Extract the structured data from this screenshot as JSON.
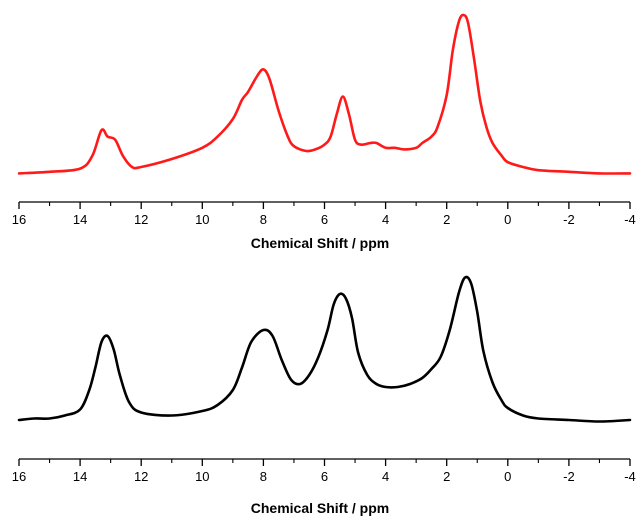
{
  "chart_data": [
    {
      "type": "line",
      "title": "",
      "xlabel": "Chemical Shift / ppm",
      "ylabel": "",
      "xlim": [
        16,
        -4
      ],
      "x_reversed": true,
      "xticks": [
        "16",
        "14",
        "12",
        "10",
        "8",
        "6",
        "4",
        "2",
        "0",
        "-2",
        "-4"
      ],
      "ylim": [
        0,
        1
      ],
      "grid": false,
      "legend": "none",
      "series": [
        {
          "color": "#ff1a1a",
          "x": [
            16.0,
            15.0,
            14.0,
            13.6,
            13.3,
            13.1,
            12.85,
            12.6,
            12.3,
            12.0,
            11.0,
            10.0,
            9.5,
            9.0,
            8.7,
            8.5,
            8.2,
            8.0,
            7.8,
            7.5,
            7.2,
            7.0,
            6.6,
            6.3,
            6.0,
            5.8,
            5.6,
            5.4,
            5.2,
            5.0,
            4.8,
            4.5,
            4.3,
            4.0,
            3.7,
            3.4,
            3.0,
            2.8,
            2.5,
            2.3,
            2.0,
            1.8,
            1.6,
            1.45,
            1.3,
            1.1,
            0.9,
            0.7,
            0.5,
            0.2,
            0.0,
            -0.5,
            -1.0,
            -2.0,
            -3.0,
            -4.0
          ],
          "y": [
            0.01,
            0.02,
            0.04,
            0.12,
            0.28,
            0.24,
            0.22,
            0.12,
            0.05,
            0.05,
            0.1,
            0.17,
            0.24,
            0.35,
            0.47,
            0.52,
            0.62,
            0.66,
            0.6,
            0.4,
            0.24,
            0.18,
            0.15,
            0.16,
            0.19,
            0.24,
            0.38,
            0.49,
            0.38,
            0.22,
            0.19,
            0.2,
            0.2,
            0.17,
            0.17,
            0.16,
            0.17,
            0.2,
            0.24,
            0.3,
            0.5,
            0.78,
            0.96,
            1.0,
            0.95,
            0.72,
            0.46,
            0.3,
            0.2,
            0.12,
            0.08,
            0.05,
            0.03,
            0.02,
            0.01,
            0.01
          ]
        }
      ]
    },
    {
      "type": "line",
      "title": "",
      "xlabel": "Chemical Shift / ppm",
      "ylabel": "",
      "xlim": [
        16,
        -4
      ],
      "x_reversed": true,
      "xticks": [
        "16",
        "14",
        "12",
        "10",
        "8",
        "6",
        "4",
        "2",
        "0",
        "-2",
        "-4"
      ],
      "ylim": [
        0,
        1
      ],
      "grid": false,
      "legend": "none",
      "series": [
        {
          "color": "#000000",
          "x": [
            16.0,
            15.5,
            15.0,
            14.5,
            14.0,
            13.7,
            13.5,
            13.3,
            13.1,
            12.9,
            12.7,
            12.4,
            12.0,
            11.0,
            10.0,
            9.5,
            9.0,
            8.7,
            8.4,
            8.0,
            7.7,
            7.4,
            7.1,
            6.8,
            6.5,
            6.2,
            5.9,
            5.7,
            5.5,
            5.3,
            5.1,
            4.9,
            4.6,
            4.3,
            4.0,
            3.6,
            3.2,
            2.8,
            2.5,
            2.2,
            1.9,
            1.6,
            1.4,
            1.2,
            1.0,
            0.8,
            0.5,
            0.2,
            0.0,
            -0.5,
            -1.0,
            -2.0,
            -3.0,
            -4.0
          ],
          "y": [
            0.0,
            0.01,
            0.01,
            0.03,
            0.07,
            0.2,
            0.35,
            0.52,
            0.56,
            0.47,
            0.3,
            0.12,
            0.05,
            0.03,
            0.06,
            0.1,
            0.2,
            0.35,
            0.52,
            0.6,
            0.56,
            0.4,
            0.27,
            0.24,
            0.3,
            0.42,
            0.6,
            0.77,
            0.84,
            0.81,
            0.68,
            0.45,
            0.3,
            0.24,
            0.22,
            0.22,
            0.24,
            0.28,
            0.34,
            0.42,
            0.6,
            0.85,
            0.95,
            0.91,
            0.72,
            0.46,
            0.25,
            0.13,
            0.08,
            0.03,
            0.01,
            0.0,
            -0.01,
            0.0
          ]
        }
      ]
    }
  ]
}
